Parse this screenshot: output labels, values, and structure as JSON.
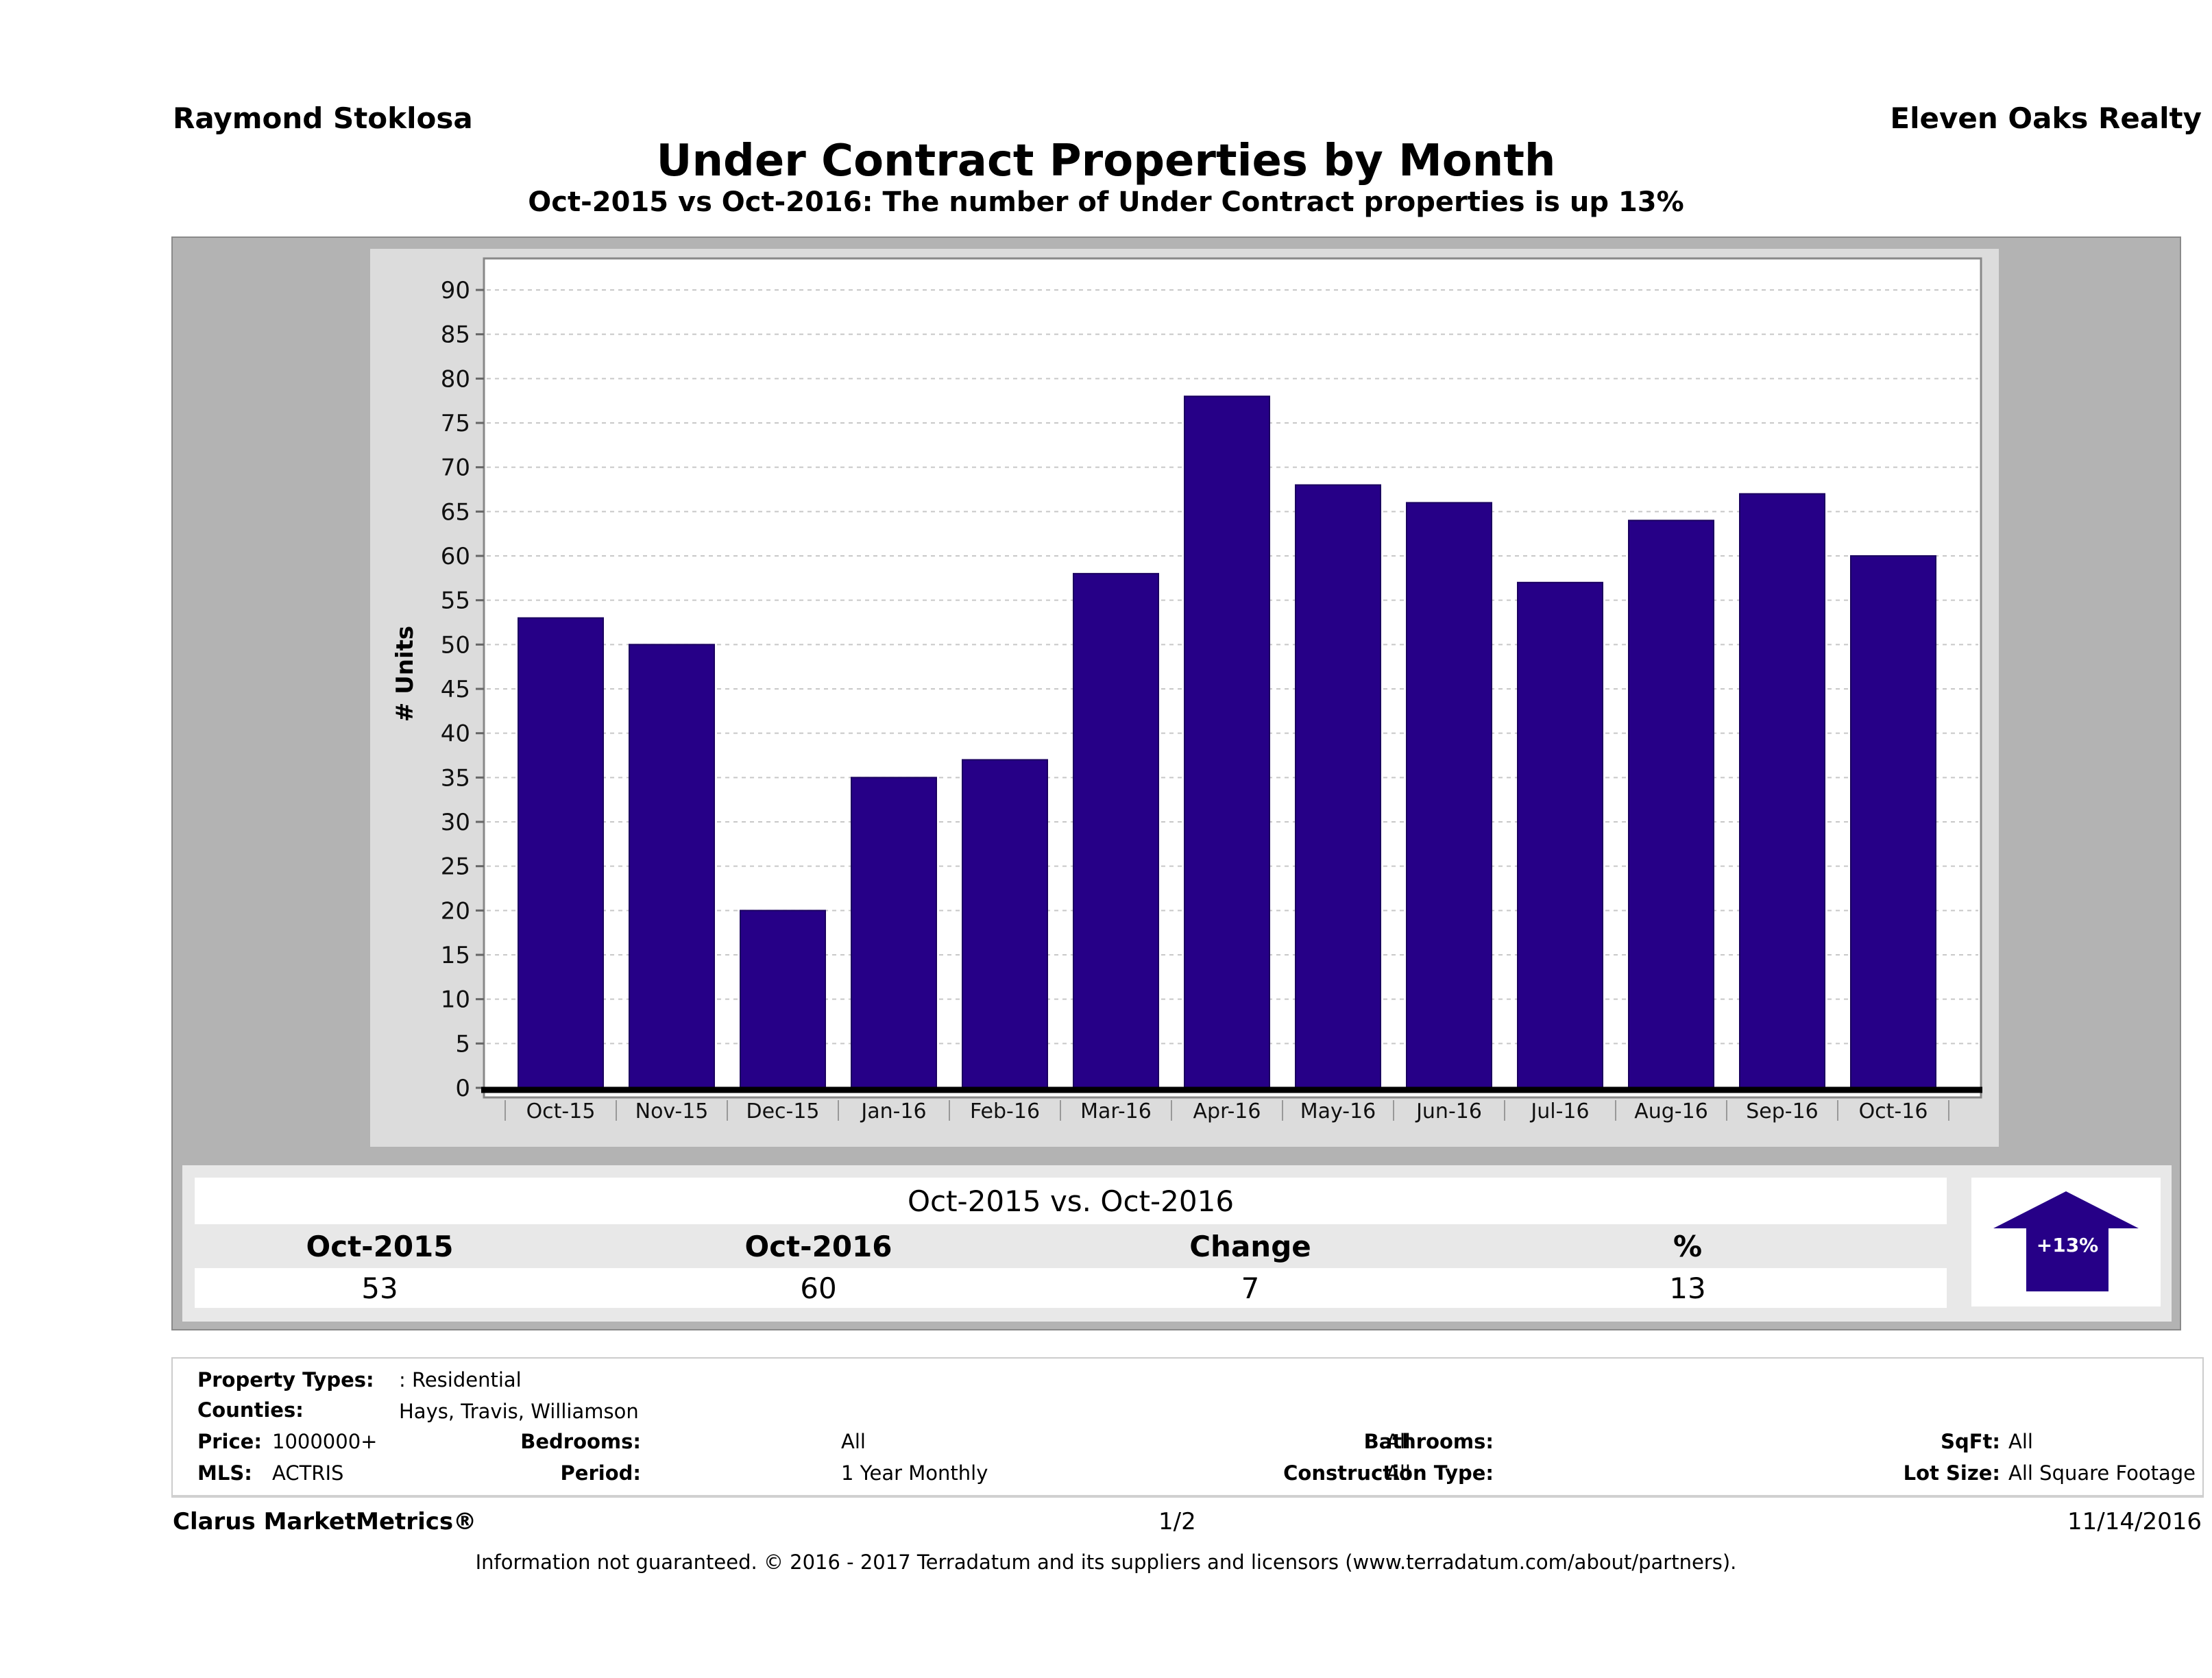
{
  "header": {
    "agent_name": "Raymond Stoklosa",
    "brokerage": "Eleven Oaks Realty",
    "title": "Under Contract Properties by Month",
    "subtitle": "Oct-2015 vs Oct-2016: The number of Under Contract   properties is up 13%"
  },
  "chart_data": {
    "type": "bar",
    "title": "Under Contract Properties by Month",
    "xlabel": "",
    "ylabel": "# Units",
    "ylim": [
      0,
      90
    ],
    "yticks": [
      0,
      5,
      10,
      15,
      20,
      25,
      30,
      35,
      40,
      45,
      50,
      55,
      60,
      65,
      70,
      75,
      80,
      85,
      90
    ],
    "grid": true,
    "categories": [
      "Oct-15",
      "Nov-15",
      "Dec-15",
      "Jan-16",
      "Feb-16",
      "Mar-16",
      "Apr-16",
      "May-16",
      "Jun-16",
      "Jul-16",
      "Aug-16",
      "Sep-16",
      "Oct-16"
    ],
    "values": [
      53,
      50,
      20,
      35,
      37,
      58,
      78,
      68,
      66,
      57,
      64,
      67,
      60
    ],
    "bar_color": "#260087"
  },
  "summary": {
    "title": "Oct-2015 vs. Oct-2016",
    "columns": [
      "Oct-2015",
      "Oct-2016",
      "Change",
      "%"
    ],
    "values": [
      "53",
      "60",
      "7",
      "13"
    ],
    "badge": "+13%",
    "badge_direction": "up",
    "badge_color": "#260087"
  },
  "filters": {
    "property_types_label": "Property Types:",
    "property_types_value": ": Residential",
    "counties_label": "Counties:",
    "counties_value": "Hays, Travis, Williamson",
    "price_label": "Price:",
    "price_value": "1000000+",
    "mls_label": "MLS:",
    "mls_value": "ACTRIS",
    "bedrooms_label": "Bedrooms:",
    "bedrooms_value": "All",
    "period_label": "Period:",
    "period_value": "1 Year Monthly",
    "bathrooms_label": "Bathrooms:",
    "bathrooms_value": "All",
    "construction_label": "Construction Type:",
    "construction_value": "All",
    "sqft_label": "SqFt:",
    "sqft_value": "All",
    "lot_size_label": "Lot Size:",
    "lot_size_value": "All Square Footage"
  },
  "footer": {
    "brand": "Clarus MarketMetrics®",
    "page": "1/2",
    "date": "11/14/2016",
    "disclaimer": "Information not guaranteed. © 2016 - 2017 Terradatum and its suppliers and licensors (www.terradatum.com/about/partners)."
  }
}
